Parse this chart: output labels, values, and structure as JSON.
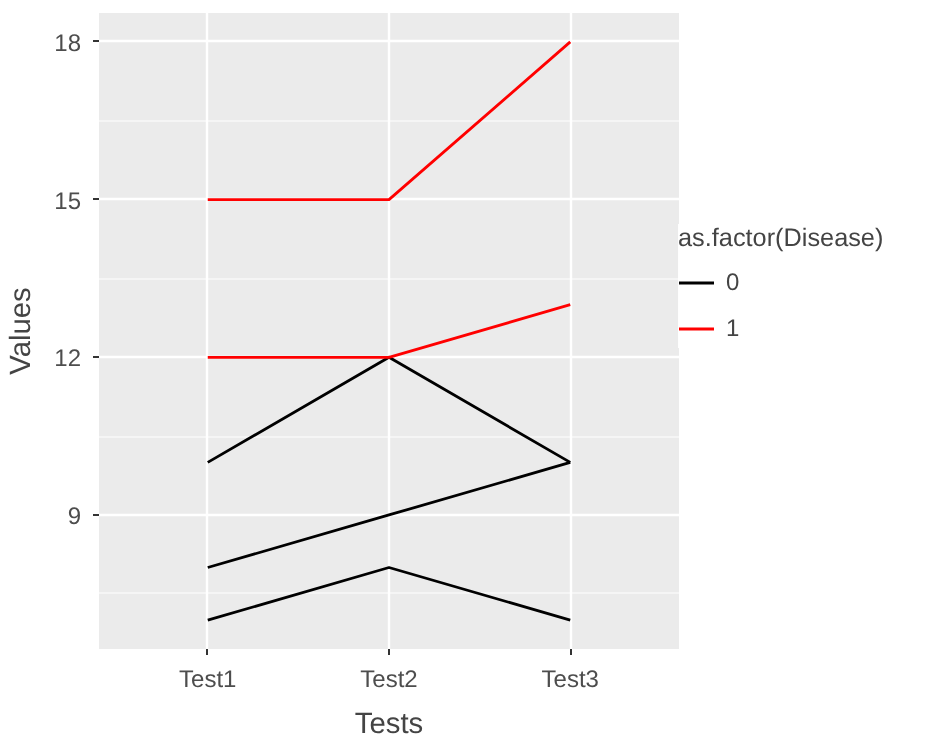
{
  "chart_data": {
    "type": "line",
    "xlabel": "Tests",
    "ylabel": "Values",
    "legend_title": "as.factor(Disease)",
    "categories": [
      "Test1",
      "Test2",
      "Test3"
    ],
    "series": [
      {
        "name": "0",
        "color": "#000000",
        "values": [
          10,
          12,
          10
        ]
      },
      {
        "color": "#000000",
        "values": [
          8,
          9,
          10
        ]
      },
      {
        "color": "#000000",
        "values": [
          7,
          8,
          7
        ]
      },
      {
        "name": "1",
        "color": "#ff0000",
        "values": [
          15,
          15,
          18
        ]
      },
      {
        "color": "#ff0000",
        "values": [
          12,
          12,
          13
        ]
      }
    ],
    "ylim": [
      6.45,
      18.55
    ],
    "yticks": [
      9,
      12,
      15,
      18
    ],
    "grid": true,
    "legend": "right",
    "line_style": "solid",
    "marker": "none"
  }
}
